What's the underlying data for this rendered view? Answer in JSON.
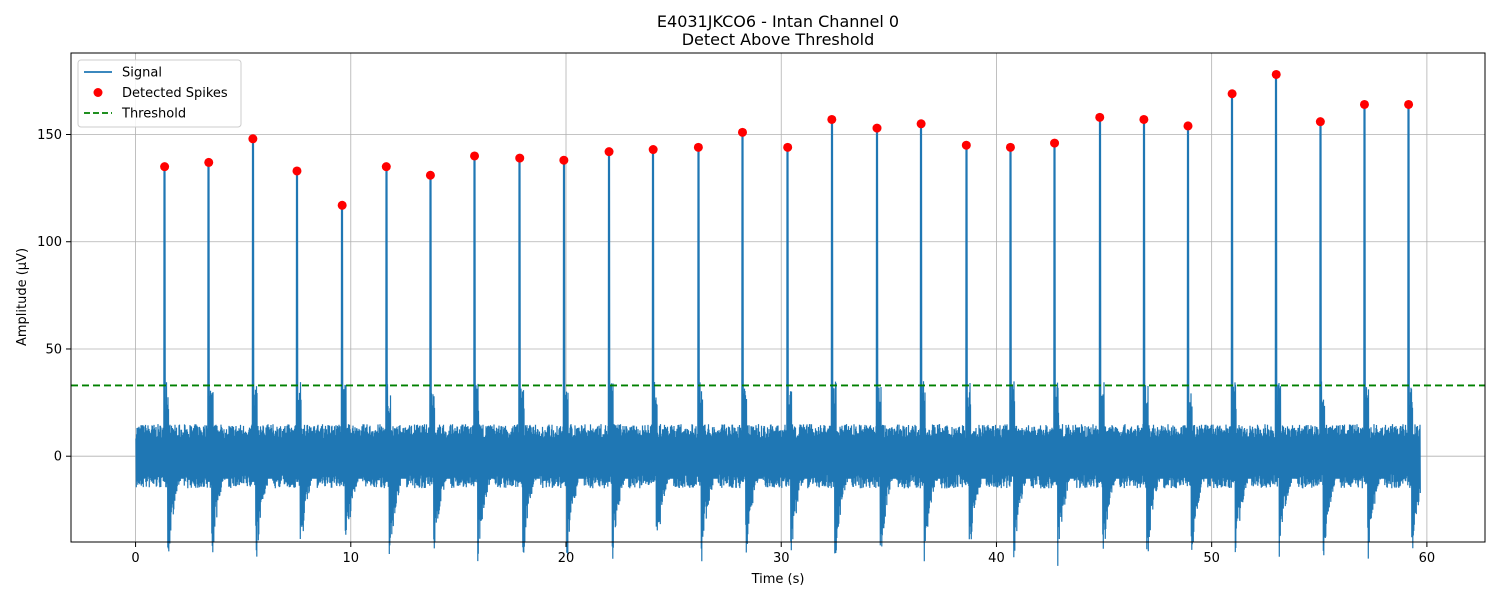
{
  "chart_data": {
    "type": "line",
    "title": "E4031JKCO6 - Intan Channel 0",
    "subtitle": "Detect Above Threshold",
    "xlabel": "Time (s)",
    "ylabel": "Amplitude (µV)",
    "xlim": [
      -3,
      62.7
    ],
    "ylim": [
      -40,
      188
    ],
    "xticks": [
      0,
      10,
      20,
      30,
      40,
      50,
      60
    ],
    "yticks": [
      0,
      50,
      100,
      150
    ],
    "grid": true,
    "legend_position": "top-left",
    "legend": [
      {
        "label": "Signal",
        "kind": "line",
        "color": "#1f77b4"
      },
      {
        "label": "Detected Spikes",
        "kind": "marker",
        "color": "#ff0000"
      },
      {
        "label": "Threshold",
        "kind": "dashed",
        "color": "#008000"
      }
    ],
    "threshold": 33,
    "signal": {
      "name": "Signal",
      "color": "#1f77b4",
      "x_range": [
        0,
        59.7
      ],
      "noise_band": [
        -15,
        15
      ],
      "trough_min": -30
    },
    "spikes": {
      "name": "Detected Spikes",
      "color": "#ff0000",
      "x": [
        1.35,
        3.4,
        5.45,
        7.5,
        9.6,
        11.65,
        13.7,
        15.75,
        17.85,
        19.9,
        22.0,
        24.05,
        26.15,
        28.2,
        30.3,
        32.35,
        34.45,
        36.5,
        38.6,
        40.65,
        42.7,
        44.8,
        46.85,
        48.9,
        50.95,
        53.0,
        55.05,
        57.1,
        59.15
      ],
      "y": [
        135,
        137,
        148,
        133,
        117,
        135,
        131,
        140,
        139,
        138,
        142,
        143,
        144,
        151,
        144,
        157,
        153,
        155,
        145,
        144,
        146,
        158,
        157,
        154,
        169,
        178,
        156,
        164,
        164
      ]
    },
    "colors": {
      "signal": "#1f77b4",
      "spikes": "#ff0000",
      "threshold": "#008000",
      "grid": "#b0b0b0"
    }
  }
}
